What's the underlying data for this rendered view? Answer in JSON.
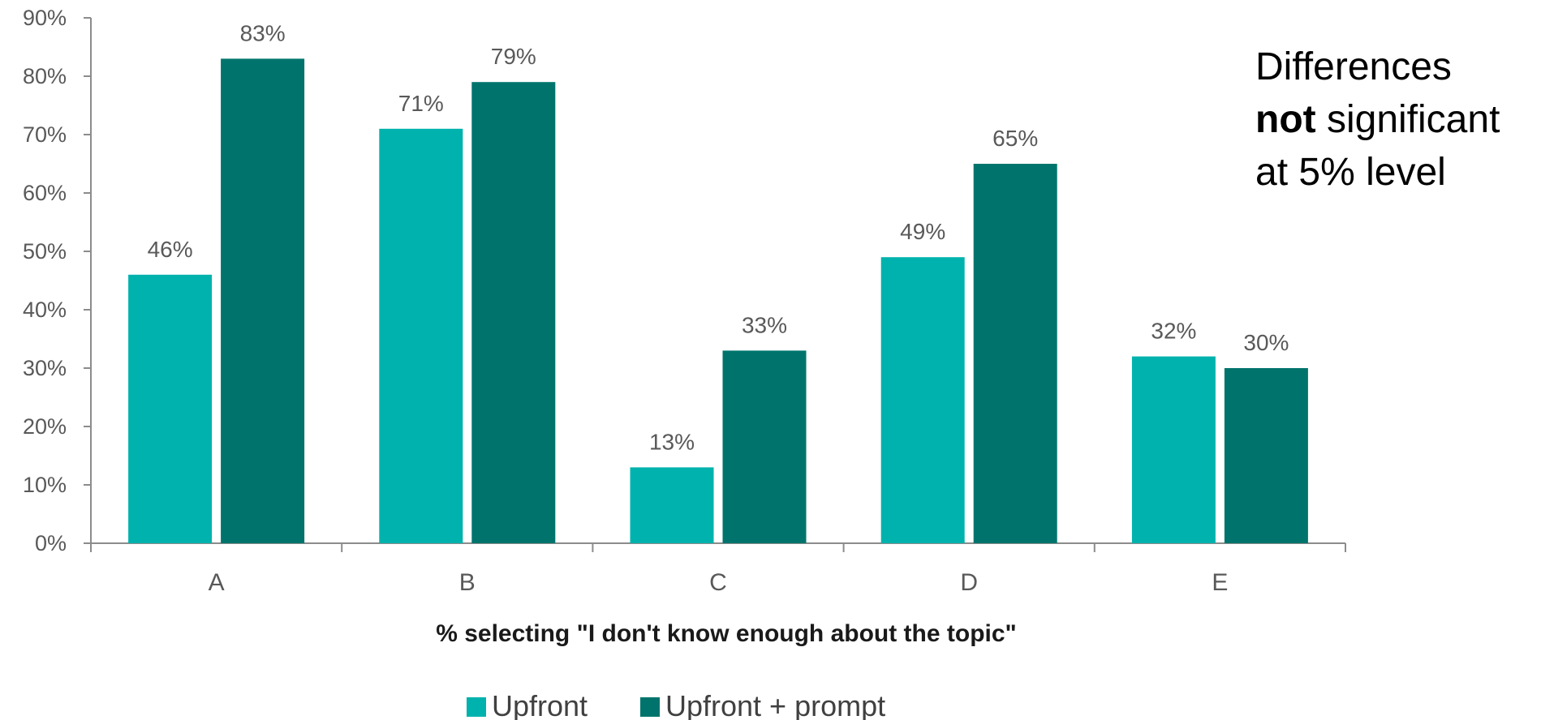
{
  "chart_data": {
    "type": "bar",
    "categories": [
      "A",
      "B",
      "C",
      "D",
      "E"
    ],
    "series": [
      {
        "name": "Upfront",
        "color": "#00b2ad",
        "values": [
          46,
          71,
          13,
          49,
          32
        ],
        "labels": [
          "46%",
          "71%",
          "13%",
          "49%",
          "32%"
        ]
      },
      {
        "name": "Upfront + prompt",
        "color": "#00746c",
        "values": [
          83,
          79,
          33,
          65,
          30
        ],
        "labels": [
          "83%",
          "79%",
          "33%",
          "65%",
          "30%"
        ]
      }
    ],
    "xlabel": "% selecting \"I don't know enough about the topic\"",
    "ylabel": "",
    "ylim": [
      0,
      90
    ],
    "yticks": [
      "0%",
      "10%",
      "20%",
      "30%",
      "40%",
      "50%",
      "60%",
      "70%",
      "80%",
      "90%"
    ],
    "legend_position": "bottom",
    "grid": false
  },
  "note": {
    "line1": "Differences",
    "line2_bold": "not",
    "line2_rest": " significant",
    "line3": "at 5% level"
  }
}
